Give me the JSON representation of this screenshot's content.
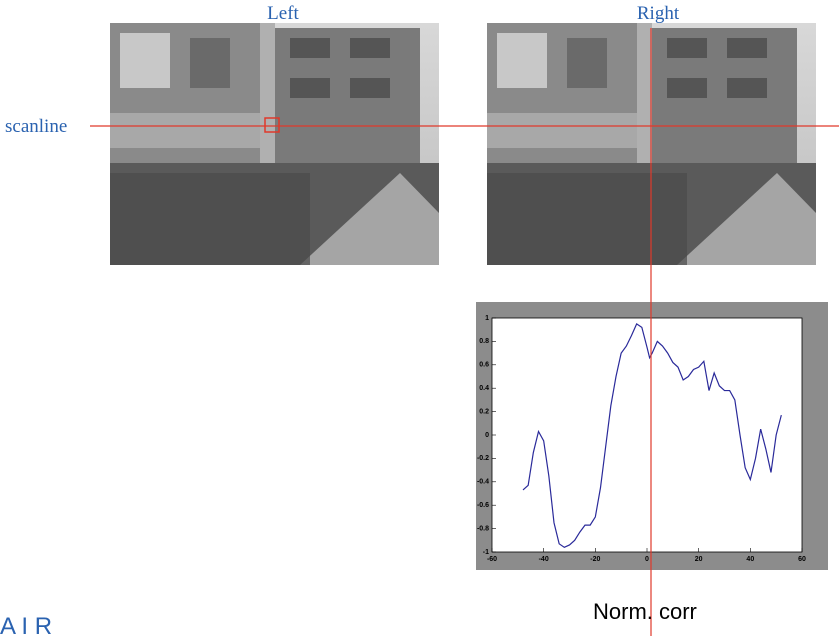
{
  "labels": {
    "left": "Left",
    "right": "Right",
    "scanline": "scanline",
    "caption": "Norm. corr",
    "logo": "A I R"
  },
  "chart_data": {
    "type": "line",
    "x": [
      -48,
      -46,
      -44,
      -42,
      -40,
      -38,
      -36,
      -34,
      -32,
      -30,
      -28,
      -26,
      -24,
      -22,
      -20,
      -18,
      -16,
      -14,
      -12,
      -10,
      -8,
      -6,
      -4,
      -2,
      0,
      1,
      2,
      4,
      6,
      8,
      10,
      12,
      14,
      16,
      18,
      20,
      22,
      24,
      26,
      28,
      30,
      32,
      34,
      36,
      38,
      40,
      42,
      44,
      46,
      48,
      50,
      52
    ],
    "series": [
      {
        "color": "#2a2a9a",
        "values": [
          -0.47,
          -0.43,
          -0.15,
          0.03,
          -0.05,
          -0.35,
          -0.75,
          -0.93,
          -0.96,
          -0.94,
          -0.9,
          -0.83,
          -0.77,
          -0.77,
          -0.7,
          -0.45,
          -0.1,
          0.25,
          0.5,
          0.7,
          0.76,
          0.85,
          0.95,
          0.92,
          0.75,
          0.66,
          0.7,
          0.8,
          0.76,
          0.7,
          0.62,
          0.58,
          0.47,
          0.5,
          0.56,
          0.58,
          0.63,
          0.38,
          0.53,
          0.42,
          0.38,
          0.38,
          0.3,
          0.0,
          -0.28,
          -0.38,
          -0.2,
          0.05,
          -0.12,
          -0.32,
          0.0,
          0.17
        ]
      }
    ],
    "xlim": [
      -60,
      60
    ],
    "xticks": [
      -60,
      -40,
      -20,
      0,
      20,
      40,
      60
    ],
    "ylim": [
      -1,
      1
    ],
    "yticks": [
      -1,
      -0.8,
      -0.6,
      -0.4,
      -0.2,
      0,
      0.2,
      0.4,
      0.6,
      0.8,
      1
    ]
  }
}
